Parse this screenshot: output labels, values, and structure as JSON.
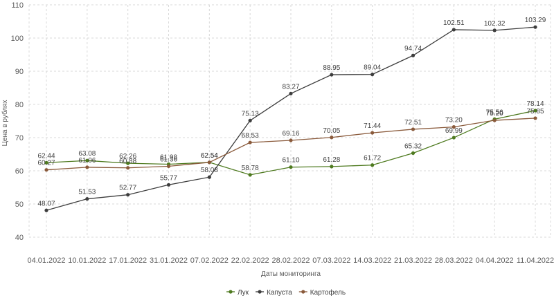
{
  "chart_data": {
    "type": "line",
    "title": "",
    "xlabel": "Даты мониторинга",
    "ylabel": "Цена в рублях",
    "ylim": [
      40,
      110
    ],
    "yticks": [
      40,
      50,
      60,
      70,
      80,
      90,
      100,
      110
    ],
    "grid": true,
    "legend_position": "bottom",
    "categories": [
      "04.01.2022",
      "10.01.2022",
      "17.01.2022",
      "31.01.2022",
      "07.02.2022",
      "22.02.2022",
      "28.02.2022",
      "07.03.2022",
      "14.03.2022",
      "21.03.2022",
      "28.03.2022",
      "04.04.2022",
      "11.04.2022"
    ],
    "series": [
      {
        "name": "Лук",
        "color": "#4e7a1f",
        "values": [
          62.44,
          63.08,
          62.26,
          61.98,
          62.54,
          58.78,
          61.1,
          61.28,
          61.72,
          65.32,
          69.99,
          75.56,
          78.14
        ],
        "labels": [
          "62.44",
          "63.08",
          "62.26",
          "61.98",
          "62.54",
          "58.78",
          "61.10",
          "61.28",
          "61.72",
          "65.32",
          "69.99",
          "75.56",
          "78.14"
        ]
      },
      {
        "name": "Капуста",
        "color": "#3d3d3d",
        "values": [
          48.07,
          51.53,
          52.77,
          55.77,
          58.08,
          75.13,
          83.27,
          88.95,
          89.04,
          94.74,
          102.51,
          102.32,
          103.29
        ],
        "labels": [
          "48.07",
          "51.53",
          "52.77",
          "55.77",
          "58.08",
          "75.13",
          "83.27",
          "88.95",
          "89.04",
          "94.74",
          "102.51",
          "102.32",
          "103.29"
        ]
      },
      {
        "name": "Картофель",
        "color": "#8a5a3b",
        "values": [
          60.27,
          61.06,
          60.88,
          61.36,
          62.54,
          68.53,
          69.16,
          70.05,
          71.44,
          72.51,
          73.2,
          75.2,
          75.85
        ],
        "labels": [
          "60.27",
          "61.06",
          "60.88",
          "61.36",
          "62.54",
          "68.53",
          "69.16",
          "70.05",
          "71.44",
          "72.51",
          "73.20",
          "75.20",
          "75.85"
        ]
      }
    ]
  }
}
